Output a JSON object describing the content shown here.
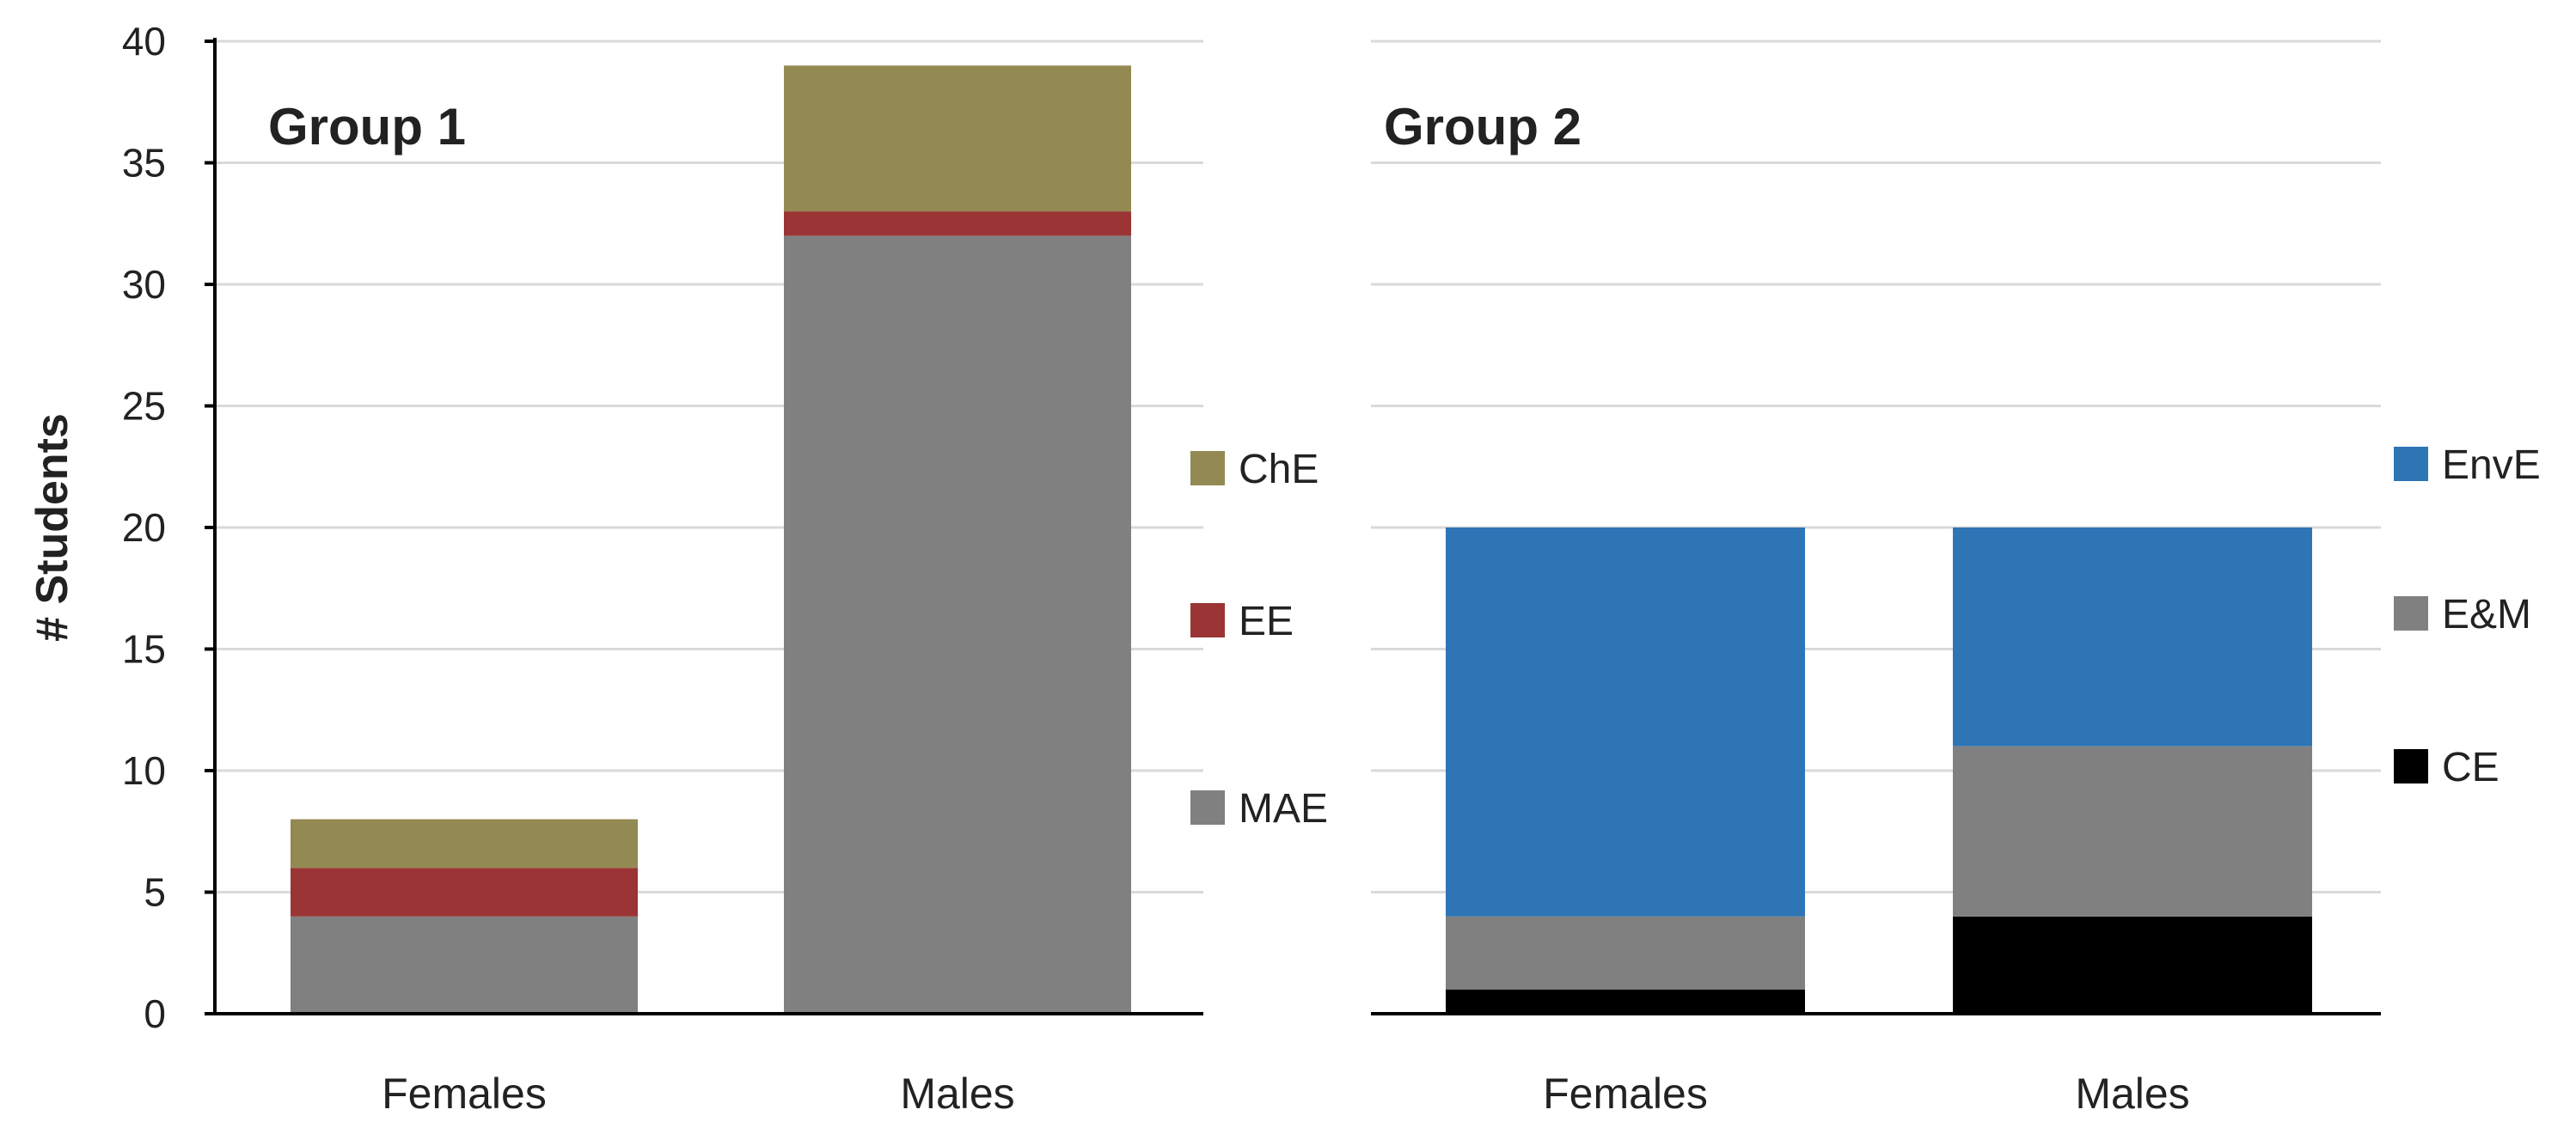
{
  "chart_data": [
    {
      "type": "bar",
      "stacked": true,
      "title": "Group 1",
      "categories": [
        "Females",
        "Males"
      ],
      "ylabel": "# Students",
      "ylim": [
        0,
        40
      ],
      "yticks": [
        0,
        5,
        10,
        15,
        20,
        25,
        30,
        35,
        40
      ],
      "grid": true,
      "series": [
        {
          "name": "MAE",
          "color": "#808080",
          "values": [
            4,
            32
          ]
        },
        {
          "name": "EE",
          "color": "#9B3535",
          "values": [
            2,
            1
          ]
        },
        {
          "name": "ChE",
          "color": "#938953",
          "values": [
            2,
            6
          ]
        }
      ]
    },
    {
      "type": "bar",
      "stacked": true,
      "title": "Group 2",
      "categories": [
        "Females",
        "Males"
      ],
      "ylim": [
        0,
        40
      ],
      "grid": true,
      "series": [
        {
          "name": "CE",
          "color": "#000000",
          "values": [
            1,
            4
          ]
        },
        {
          "name": "E&M",
          "color": "#808080",
          "values": [
            3,
            7
          ]
        },
        {
          "name": "EnvE",
          "color": "#2E75B6",
          "values": [
            16,
            9
          ]
        }
      ]
    }
  ]
}
